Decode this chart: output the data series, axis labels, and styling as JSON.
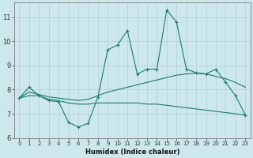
{
  "title": "",
  "xlabel": "Humidex (Indice chaleur)",
  "background_color": "#cce8ec",
  "line_color": "#1a7a6e",
  "grid_color": "#b0cfd4",
  "xlim": [
    -0.5,
    23.5
  ],
  "ylim": [
    6,
    11.6
  ],
  "yticks": [
    6,
    7,
    8,
    9,
    10,
    11
  ],
  "xticks": [
    0,
    1,
    2,
    3,
    4,
    5,
    6,
    7,
    8,
    9,
    10,
    11,
    12,
    13,
    14,
    15,
    16,
    17,
    18,
    19,
    20,
    21,
    22,
    23
  ],
  "line1_x": [
    0,
    1,
    2,
    3,
    4,
    5,
    6,
    7,
    8,
    9,
    10,
    11,
    12,
    13,
    14,
    15,
    16,
    17,
    18,
    19,
    20,
    21,
    22,
    23
  ],
  "line1_y": [
    7.65,
    8.1,
    7.75,
    7.55,
    7.5,
    6.65,
    6.45,
    6.6,
    7.7,
    9.65,
    9.85,
    10.45,
    8.65,
    8.85,
    8.85,
    11.3,
    10.8,
    8.85,
    8.7,
    8.65,
    8.85,
    8.3,
    7.75,
    6.95
  ],
  "line2_x": [
    0,
    1,
    2,
    3,
    4,
    5,
    6,
    7,
    8,
    9,
    10,
    11,
    12,
    13,
    14,
    15,
    16,
    17,
    18,
    19,
    20,
    21,
    22,
    23
  ],
  "line2_y": [
    7.65,
    7.9,
    7.8,
    7.7,
    7.65,
    7.6,
    7.55,
    7.6,
    7.75,
    7.9,
    8.0,
    8.1,
    8.2,
    8.3,
    8.4,
    8.5,
    8.6,
    8.65,
    8.68,
    8.65,
    8.55,
    8.45,
    8.3,
    8.1
  ],
  "line3_x": [
    0,
    1,
    2,
    3,
    4,
    5,
    6,
    7,
    8,
    9,
    10,
    11,
    12,
    13,
    14,
    15,
    16,
    17,
    18,
    19,
    20,
    21,
    22,
    23
  ],
  "line3_y": [
    7.65,
    7.75,
    7.75,
    7.6,
    7.55,
    7.45,
    7.4,
    7.4,
    7.45,
    7.45,
    7.45,
    7.45,
    7.45,
    7.4,
    7.4,
    7.35,
    7.3,
    7.25,
    7.2,
    7.15,
    7.1,
    7.05,
    7.0,
    6.95
  ]
}
